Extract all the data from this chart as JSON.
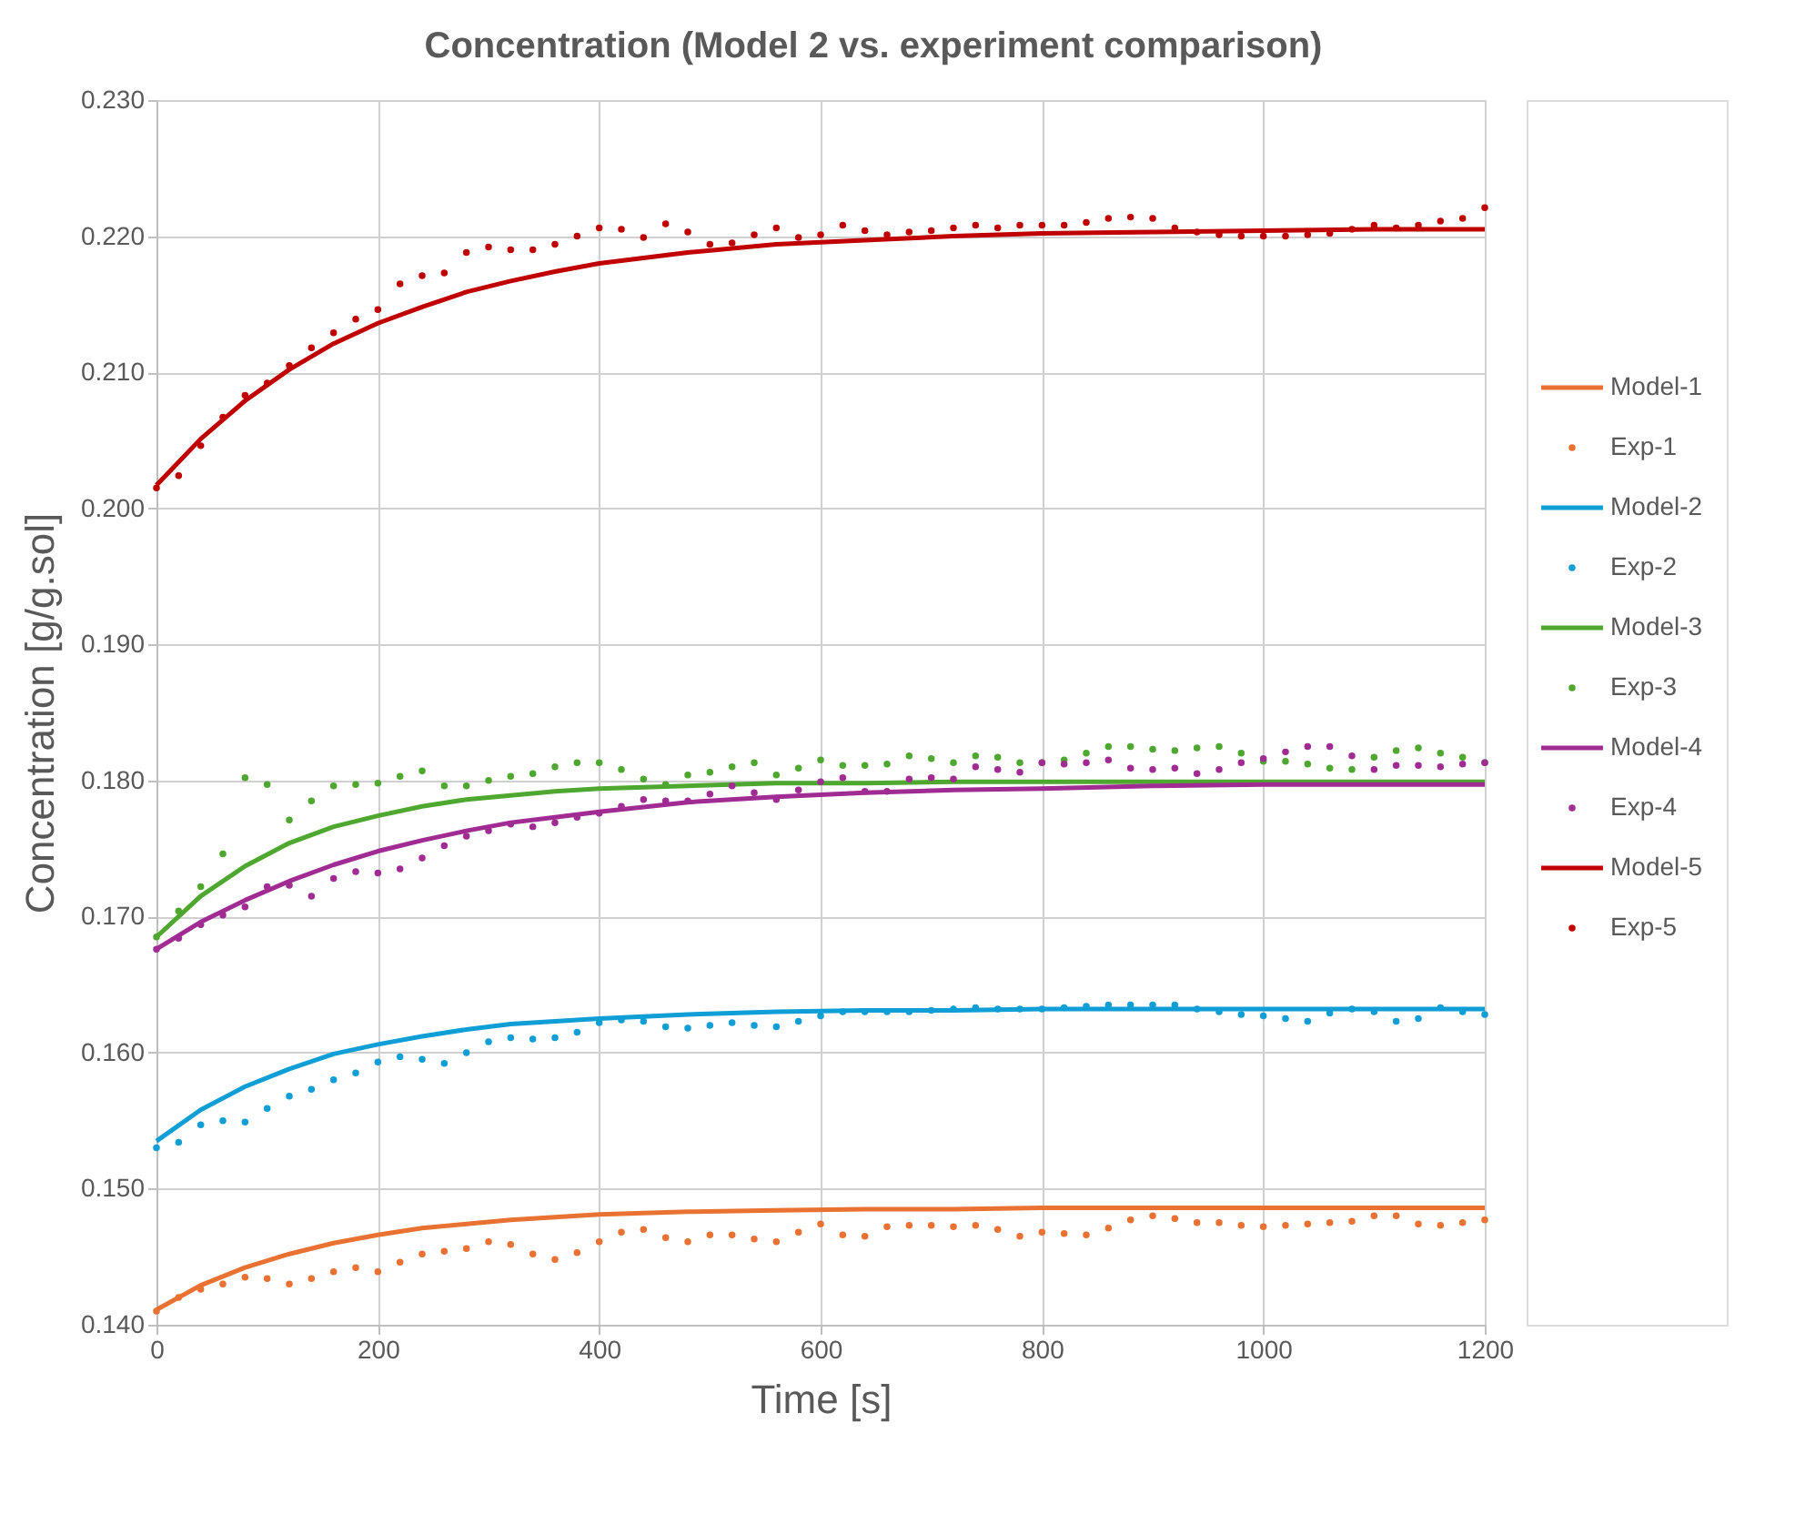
{
  "chart_data": {
    "type": "line",
    "title": "Concentration (Model 2 vs. experiment comparison)",
    "xlabel": "Time [s]",
    "ylabel": "Concentration [g/g.sol]",
    "x": [
      0,
      20,
      40,
      60,
      80,
      100,
      120,
      140,
      160,
      180,
      200,
      220,
      240,
      260,
      280,
      300,
      320,
      340,
      360,
      380,
      400,
      420,
      440,
      460,
      480,
      500,
      520,
      540,
      560,
      580,
      600,
      620,
      640,
      660,
      680,
      700,
      720,
      740,
      760,
      780,
      800,
      820,
      840,
      860,
      880,
      900,
      920,
      940,
      960,
      980,
      1000,
      1020,
      1040,
      1060,
      1080,
      1100,
      1120,
      1140,
      1160,
      1180,
      1200
    ],
    "xlim": [
      0,
      1200
    ],
    "xticks": [
      0,
      200,
      400,
      600,
      800,
      1000,
      1200
    ],
    "ylim": [
      0.14,
      0.23
    ],
    "yticks": [
      {
        "value": 0.14,
        "label": "0.140"
      },
      {
        "value": 0.15,
        "label": "0.150"
      },
      {
        "value": 0.16,
        "label": "0.160"
      },
      {
        "value": 0.17,
        "label": "0.170"
      },
      {
        "value": 0.18,
        "label": "0.180"
      },
      {
        "value": 0.19,
        "label": "0.190"
      },
      {
        "value": 0.2,
        "label": "0.200"
      },
      {
        "value": 0.21,
        "label": "0.210"
      },
      {
        "value": 0.22,
        "label": "0.220"
      },
      {
        "value": 0.23,
        "label": "0.230"
      }
    ],
    "grid": true,
    "legend": "right",
    "series": [
      {
        "name": "Model-1",
        "marker": "none",
        "line_style": "solid",
        "color": "#e97132",
        "x": [
          0,
          40,
          80,
          120,
          160,
          200,
          240,
          280,
          320,
          360,
          400,
          480,
          560,
          640,
          720,
          800,
          900,
          1000,
          1100,
          1200
        ],
        "values": [
          0.1411,
          0.1429,
          0.1442,
          0.1452,
          0.146,
          0.1466,
          0.1471,
          0.1474,
          0.1477,
          0.1479,
          0.1481,
          0.1483,
          0.1484,
          0.1485,
          0.1485,
          0.1486,
          0.1486,
          0.1486,
          0.1486,
          0.1486
        ]
      },
      {
        "name": "Exp-1",
        "type": "scatter",
        "marker": "circle",
        "color": "#e97132",
        "values": [
          0.141,
          0.142,
          0.1426,
          0.143,
          0.1435,
          0.1434,
          0.143,
          0.1434,
          0.1439,
          0.1442,
          0.1439,
          0.1446,
          0.1452,
          0.1454,
          0.1456,
          0.1461,
          0.1459,
          0.1452,
          0.1448,
          0.1453,
          0.1461,
          0.1468,
          0.147,
          0.1464,
          0.1461,
          0.1466,
          0.1466,
          0.1463,
          0.1461,
          0.1468,
          0.1474,
          0.1466,
          0.1465,
          0.1472,
          0.1473,
          0.1473,
          0.1472,
          0.1473,
          0.147,
          0.1465,
          0.1468,
          0.1467,
          0.1466,
          0.1471,
          0.1477,
          0.148,
          0.1478,
          0.1475,
          0.1475,
          0.1473,
          0.1472,
          0.1473,
          0.1474,
          0.1475,
          0.1476,
          0.148,
          0.148,
          0.1474,
          0.1473,
          0.1475,
          0.1477
        ]
      },
      {
        "name": "Model-2",
        "marker": "none",
        "line_style": "solid",
        "color": "#0f9ed5",
        "x": [
          0,
          40,
          80,
          120,
          160,
          200,
          240,
          280,
          320,
          360,
          400,
          480,
          560,
          640,
          720,
          800,
          900,
          1000,
          1100,
          1200
        ],
        "values": [
          0.1535,
          0.1558,
          0.1575,
          0.1588,
          0.1599,
          0.1606,
          0.1612,
          0.1617,
          0.1621,
          0.1623,
          0.1625,
          0.1628,
          0.163,
          0.1631,
          0.1631,
          0.1632,
          0.1632,
          0.1632,
          0.1632,
          0.1632
        ]
      },
      {
        "name": "Exp-2",
        "type": "scatter",
        "marker": "circle",
        "color": "#0f9ed5",
        "values": [
          0.153,
          0.1534,
          0.1547,
          0.155,
          0.1549,
          0.1559,
          0.1568,
          0.1573,
          0.158,
          0.1585,
          0.1593,
          0.1597,
          0.1595,
          0.1592,
          0.16,
          0.1608,
          0.1611,
          0.161,
          0.1611,
          0.1615,
          0.1622,
          0.1624,
          0.1623,
          0.1619,
          0.1618,
          0.162,
          0.1622,
          0.162,
          0.1619,
          0.1623,
          0.1627,
          0.163,
          0.163,
          0.163,
          0.163,
          0.1631,
          0.1632,
          0.1633,
          0.1632,
          0.1632,
          0.1632,
          0.1633,
          0.1634,
          0.1635,
          0.1635,
          0.1635,
          0.1635,
          0.1632,
          0.163,
          0.1628,
          0.1627,
          0.1625,
          0.1623,
          0.1629,
          0.1632,
          0.163,
          0.1623,
          0.1625,
          0.1633,
          0.163,
          0.1628
        ]
      },
      {
        "name": "Model-3",
        "marker": "none",
        "line_style": "solid",
        "color": "#4ea72e",
        "x": [
          0,
          40,
          80,
          120,
          160,
          200,
          240,
          280,
          320,
          360,
          400,
          480,
          560,
          640,
          720,
          800,
          900,
          1000,
          1100,
          1200
        ],
        "values": [
          0.1685,
          0.1715,
          0.1737,
          0.1754,
          0.1766,
          0.1774,
          0.1781,
          0.1786,
          0.1789,
          0.1792,
          0.1794,
          0.1796,
          0.1798,
          0.1798,
          0.1799,
          0.1799,
          0.1799,
          0.1799,
          0.1799,
          0.1799
        ]
      },
      {
        "name": "Exp-3",
        "type": "scatter",
        "marker": "circle",
        "color": "#4ea72e",
        "values": [
          0.1685,
          0.1704,
          0.1722,
          0.1746,
          0.1802,
          0.1797,
          0.1771,
          0.1785,
          0.1796,
          0.1797,
          0.1798,
          0.1803,
          0.1807,
          0.1796,
          0.1796,
          0.18,
          0.1803,
          0.1805,
          0.181,
          0.1813,
          0.1813,
          0.1808,
          0.1801,
          0.1797,
          0.1804,
          0.1806,
          0.181,
          0.1813,
          0.1804,
          0.1809,
          0.1815,
          0.1811,
          0.1811,
          0.1812,
          0.1818,
          0.1816,
          0.1813,
          0.1818,
          0.1817,
          0.1813,
          0.1813,
          0.1815,
          0.182,
          0.1825,
          0.1825,
          0.1823,
          0.1822,
          0.1824,
          0.1825,
          0.182,
          0.1814,
          0.1814,
          0.1812,
          0.1809,
          0.1808,
          0.1817,
          0.1822,
          0.1824,
          0.182,
          0.1817,
          0.1813
        ]
      },
      {
        "name": "Model-4",
        "marker": "none",
        "line_style": "solid",
        "color": "#a02b93",
        "x": [
          0,
          40,
          80,
          120,
          160,
          200,
          240,
          280,
          320,
          360,
          400,
          480,
          560,
          640,
          720,
          800,
          900,
          1000,
          1100,
          1200
        ],
        "values": [
          0.1676,
          0.1696,
          0.1712,
          0.1726,
          0.1738,
          0.1748,
          0.1756,
          0.1763,
          0.1769,
          0.1773,
          0.1777,
          0.1784,
          0.1788,
          0.1791,
          0.1793,
          0.1794,
          0.1796,
          0.1797,
          0.1797,
          0.1797
        ]
      },
      {
        "name": "Exp-4",
        "type": "scatter",
        "marker": "circle",
        "color": "#a02b93",
        "values": [
          0.1676,
          0.1684,
          0.1694,
          0.1701,
          0.1707,
          0.1722,
          0.1723,
          0.1715,
          0.1728,
          0.1733,
          0.1732,
          0.1735,
          0.1743,
          0.1752,
          0.1759,
          0.1763,
          0.1768,
          0.1766,
          0.1769,
          0.1773,
          0.1776,
          0.1781,
          0.1786,
          0.1785,
          0.1785,
          0.179,
          0.1796,
          0.1791,
          0.1786,
          0.1793,
          0.1799,
          0.1802,
          0.1792,
          0.1792,
          0.1801,
          0.1802,
          0.1801,
          0.181,
          0.1808,
          0.1806,
          0.1813,
          0.1812,
          0.1813,
          0.1815,
          0.1809,
          0.1808,
          0.1809,
          0.1805,
          0.1808,
          0.1813,
          0.1816,
          0.1821,
          0.1825,
          0.1825,
          0.1818,
          0.1808,
          0.1811,
          0.1811,
          0.181,
          0.1812,
          0.1813
        ]
      },
      {
        "name": "Model-5",
        "marker": "none",
        "line_style": "solid",
        "color": "#c00000",
        "x": [
          0,
          40,
          80,
          120,
          160,
          200,
          240,
          280,
          320,
          360,
          400,
          480,
          560,
          640,
          720,
          800,
          900,
          1000,
          1100,
          1200
        ],
        "values": [
          0.2017,
          0.2051,
          0.2079,
          0.2102,
          0.2121,
          0.2136,
          0.2148,
          0.2159,
          0.2167,
          0.2174,
          0.218,
          0.2188,
          0.2194,
          0.2197,
          0.22,
          0.2202,
          0.2203,
          0.2204,
          0.2205,
          0.2205
        ]
      },
      {
        "name": "Exp-5",
        "type": "scatter",
        "marker": "circle",
        "color": "#c00000",
        "values": [
          0.2015,
          0.2024,
          0.2046,
          0.2067,
          0.2083,
          0.2092,
          0.2105,
          0.2118,
          0.2129,
          0.2139,
          0.2146,
          0.2165,
          0.2171,
          0.2173,
          0.2188,
          0.2192,
          0.219,
          0.219,
          0.2194,
          0.22,
          0.2206,
          0.2205,
          0.2199,
          0.2209,
          0.2203,
          0.2194,
          0.2195,
          0.2201,
          0.2206,
          0.2199,
          0.2201,
          0.2208,
          0.2204,
          0.2201,
          0.2203,
          0.2204,
          0.2206,
          0.2208,
          0.2206,
          0.2208,
          0.2208,
          0.2208,
          0.221,
          0.2213,
          0.2214,
          0.2213,
          0.2206,
          0.2203,
          0.2201,
          0.22,
          0.22,
          0.22,
          0.2201,
          0.2202,
          0.2205,
          0.2208,
          0.2206,
          0.2208,
          0.2211,
          0.2213,
          0.2221
        ]
      }
    ]
  }
}
